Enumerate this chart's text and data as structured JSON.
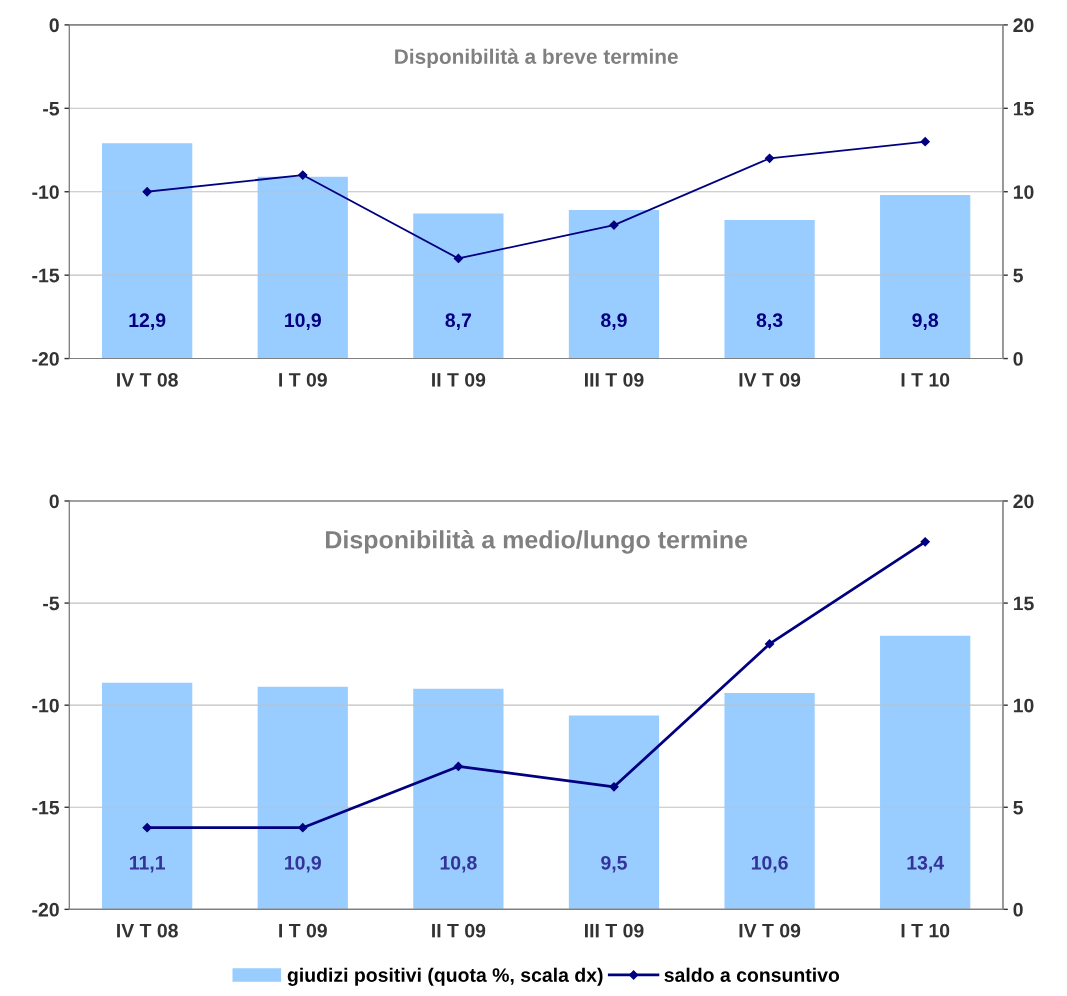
{
  "chart_data": [
    {
      "type": "bar",
      "title": "Disponibilità a breve termine",
      "categories": [
        "IV T 08",
        "I T 09",
        "II T 09",
        "III T 09",
        "IV T 09",
        "I T 10"
      ],
      "series": [
        {
          "axis": "y2",
          "color": "#99ccff",
          "values": [
            12.9,
            10.9,
            8.7,
            8.9,
            8.3,
            9.8
          ],
          "value_labels": [
            "12,9",
            "10,9",
            "8,7",
            "8,9",
            "8,3",
            "9,8"
          ]
        },
        {
          "type": "line",
          "axis": "y",
          "color": "#000080",
          "marker": "diamond",
          "values": [
            -10,
            -9,
            -14,
            -12,
            -8,
            -7
          ]
        }
      ],
      "ylim": [
        -20,
        0
      ],
      "yticks": [
        -20,
        -15,
        -10,
        -5,
        0
      ],
      "y2lim": [
        0,
        20
      ],
      "y2ticks": [
        0,
        5,
        10,
        15,
        20
      ],
      "grid": "y",
      "legend": false
    },
    {
      "type": "bar",
      "title": "Disponibilità a medio/lungo termine",
      "categories": [
        "IV T 08",
        "I T 09",
        "II T 09",
        "III T 09",
        "IV T 09",
        "I T 10"
      ],
      "series": [
        {
          "name": "giudizi positivi (quota %, scala dx)",
          "axis": "y2",
          "color": "#99ccff",
          "values": [
            11.1,
            10.9,
            10.8,
            9.5,
            10.6,
            13.4
          ],
          "value_labels": [
            "11,1",
            "10,9",
            "10,8",
            "9,5",
            "10,6",
            "13,4"
          ]
        },
        {
          "type": "line",
          "name": "saldo a consuntivo",
          "axis": "y",
          "color": "#000080",
          "marker": "diamond",
          "values": [
            -16,
            -16,
            -13,
            -14,
            -7,
            -2
          ]
        }
      ],
      "ylim": [
        -20,
        0
      ],
      "yticks": [
        -20,
        -15,
        -10,
        -5,
        0
      ],
      "y2lim": [
        0,
        20
      ],
      "y2ticks": [
        0,
        5,
        10,
        15,
        20
      ],
      "grid": "y",
      "legend": "bottom"
    }
  ]
}
